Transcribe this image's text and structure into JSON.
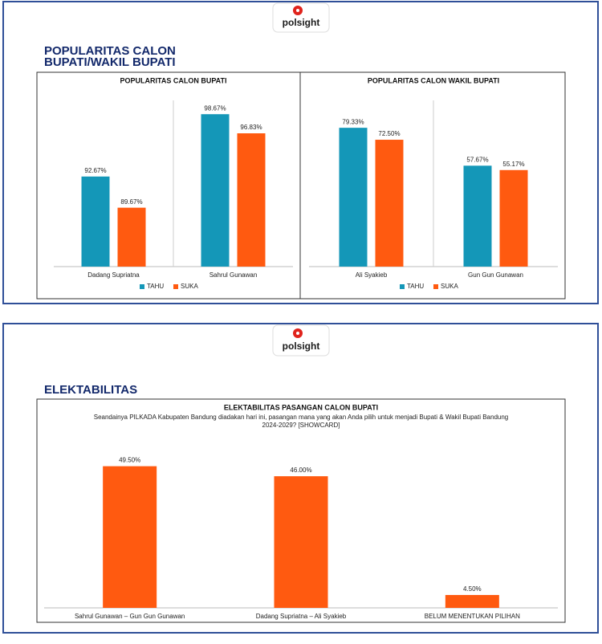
{
  "slides": [
    {
      "logo": "polsight",
      "heading": [
        "POPULARITAS CALON",
        "BUPATI/WAKIL BUPATI"
      ]
    },
    {
      "logo": "polsight",
      "heading": [
        "ELEKTABILITAS"
      ]
    }
  ],
  "chart_data": [
    {
      "type": "bar",
      "title": "POPULARITAS CALON BUPATI",
      "categories": [
        "Dadang Supriatna",
        "Sahrul Gunawan"
      ],
      "series": [
        {
          "name": "TAHU",
          "color": "#1497b8",
          "values": [
            92.67,
            98.67
          ],
          "value_labels": [
            "92.67%",
            "98.67%"
          ]
        },
        {
          "name": "SUKA",
          "color": "#ff5a10",
          "values": [
            89.67,
            96.83
          ],
          "value_labels": [
            "89.67%",
            "96.83%"
          ]
        }
      ],
      "ylim": [
        84,
        100
      ]
    },
    {
      "type": "bar",
      "title": "POPULARITAS CALON WAKIL BUPATI",
      "categories": [
        "Ali Syakieb",
        "Gun Gun Gunawan"
      ],
      "series": [
        {
          "name": "TAHU",
          "color": "#1497b8",
          "values": [
            79.33,
            57.67
          ],
          "value_labels": [
            "79.33%",
            "57.67%"
          ]
        },
        {
          "name": "SUKA",
          "color": "#ff5a10",
          "values": [
            72.5,
            55.17
          ],
          "value_labels": [
            "72.50%",
            "55.17%"
          ]
        }
      ],
      "ylim": [
        0,
        95
      ]
    },
    {
      "type": "bar",
      "title": "ELEKTABILITAS PASANGAN CALON BUPATI",
      "subtitle": [
        "Seandainya PILKADA Kabupaten Bandung diadakan hari ini, pasangan mana yang akan Anda pilih untuk menjadi Bupati & Wakil Bupati Bandung",
        "2024-2029? [SHOWCARD]"
      ],
      "categories": [
        "Sahrul Gunawan – Gun Gun Gunawan",
        "Dadang Supriatna – Ali Syakieb",
        "BELUM MENENTUKAN PILIHAN"
      ],
      "values": [
        49.5,
        46.0,
        4.5
      ],
      "value_labels": [
        "49.50%",
        "46.00%",
        "4.50%"
      ],
      "color": "#ff5a10",
      "ylim": [
        0,
        55
      ]
    }
  ]
}
